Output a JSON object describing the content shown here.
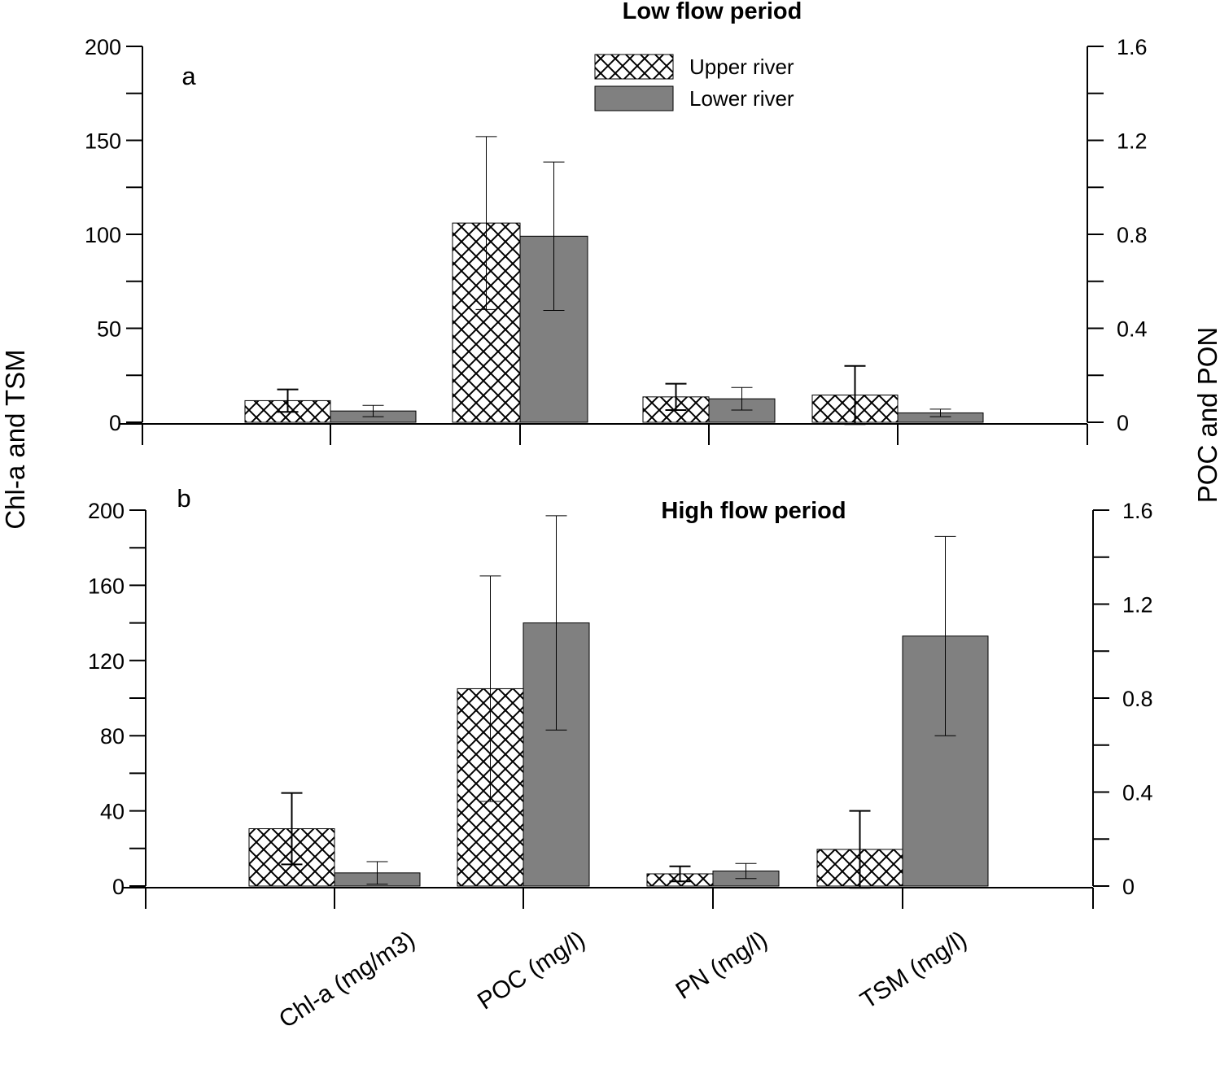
{
  "chart_data": {
    "type": "bar",
    "y_axis_left_title": "Chl-a and TSM",
    "y_axis_right_title": "POC and PON",
    "categories": [
      "Chl-a (mg/m3)",
      "POC (mg/l)",
      "PN (mg/l)",
      "TSM (mg/l)"
    ],
    "legend": {
      "placement": "top-center",
      "entries": [
        {
          "name": "Upper river",
          "pattern": "crosshatch"
        },
        {
          "name": "Lower river",
          "color": "#808080"
        }
      ]
    },
    "colors": {
      "lower_river": "#808080",
      "upper_river_pattern": "#000000",
      "upper_river_background": "#ffffff"
    },
    "panels": [
      {
        "letter": "a",
        "title": "Low flow period",
        "left_ylim": [
          0,
          200
        ],
        "left_ticks": [
          "0",
          "50",
          "100",
          "150",
          "200"
        ],
        "right_ylim": [
          0,
          1.6
        ],
        "right_ticks": [
          "0",
          "0.4",
          "0.8",
          "1.2",
          "1.6"
        ],
        "series": [
          {
            "name": "Upper river",
            "values": [
              11.5,
              106,
              13.5,
              14.5
            ],
            "errors": [
              6,
              46,
              7,
              15.5
            ]
          },
          {
            "name": "Lower river",
            "values": [
              6,
              99,
              12.5,
              5
            ],
            "errors": [
              3,
              39.5,
              6,
              2
            ]
          }
        ]
      },
      {
        "letter": "b",
        "title": "High flow period",
        "left_ylim": [
          0,
          200
        ],
        "left_ticks": [
          "0",
          "40",
          "80",
          "120",
          "160",
          "200"
        ],
        "right_ylim": [
          0,
          1.6
        ],
        "right_ticks": [
          "0",
          "0.4",
          "0.8",
          "1.2",
          "1.6"
        ],
        "series": [
          {
            "name": "Upper river",
            "values": [
              30.5,
              105,
              6.5,
              19.5
            ],
            "errors": [
              19,
              60,
              4,
              20.5
            ]
          },
          {
            "name": "Lower river",
            "values": [
              7,
              140,
              8,
              133
            ],
            "errors": [
              6,
              57,
              4,
              53
            ]
          }
        ]
      }
    ]
  }
}
